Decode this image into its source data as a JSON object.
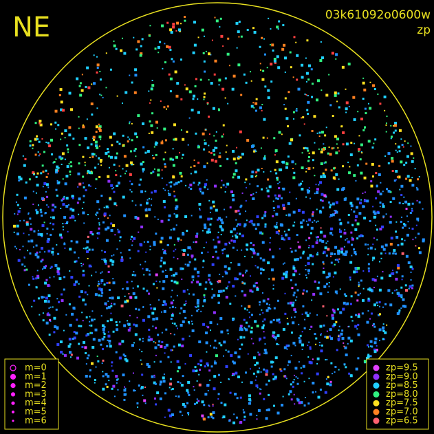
{
  "corner_label": "NE",
  "image_id": "03k61092o0600w",
  "mode": "zp",
  "magnitude_legend": [
    "m=0",
    "m=1",
    "m=2",
    "m=3",
    "m=4",
    "m=5",
    "m=6"
  ],
  "zp_legend": [
    {
      "label": "zp=9.5",
      "color": "#e040ff"
    },
    {
      "label": "zp=9.0",
      "color": "#9030ff"
    },
    {
      "label": "zp=8.5",
      "color": "#20d0ff"
    },
    {
      "label": "zp=8.0",
      "color": "#30f080"
    },
    {
      "label": "zp=7.5",
      "color": "#ffe020"
    },
    {
      "label": "zp=7.0",
      "color": "#ff8020"
    },
    {
      "label": "zp=6.5",
      "color": "#ff6070"
    }
  ]
}
